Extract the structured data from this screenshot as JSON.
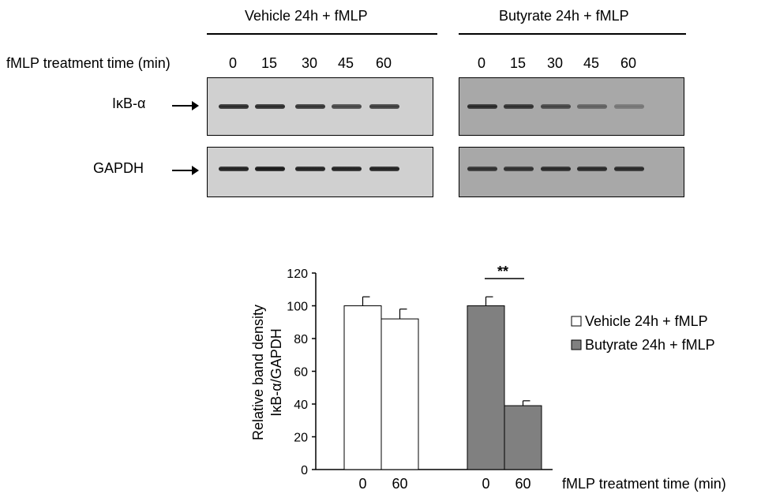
{
  "blot": {
    "groups": [
      {
        "label": "Vehicle 24h + fMLP"
      },
      {
        "label": "Butyrate 24h + fMLP"
      }
    ],
    "time_axis_label": "fMLP treatment time (min)",
    "time_points": [
      "0",
      "15",
      "30",
      "45",
      "60"
    ],
    "rows": [
      {
        "label": "IκB-α",
        "vehicle_intensity": [
          0.9,
          0.9,
          0.85,
          0.75,
          0.8
        ],
        "butyrate_intensity": [
          0.9,
          0.85,
          0.7,
          0.5,
          0.35
        ]
      },
      {
        "label": "GAPDH",
        "vehicle_intensity": [
          0.95,
          1.0,
          0.95,
          0.95,
          0.95
        ],
        "butyrate_intensity": [
          0.85,
          0.85,
          0.9,
          0.9,
          0.9
        ]
      }
    ],
    "colors": {
      "vehicle_bg": "#d0d0d0",
      "butyrate_bg": "#a8a8a8"
    }
  },
  "chart_data": {
    "type": "bar",
    "ylabel_line1": "Relative band density",
    "ylabel_line2": "IκB-α/GAPDH",
    "xlabel": "fMLP treatment time (min)",
    "ylim": [
      0,
      120
    ],
    "yticks": [
      0,
      20,
      40,
      60,
      80,
      100,
      120
    ],
    "groups": [
      {
        "name": "Vehicle 24h + fMLP",
        "color": "#ffffff",
        "categories": [
          "0",
          "60"
        ],
        "values": [
          100,
          92
        ],
        "errors": [
          5.5,
          6
        ]
      },
      {
        "name": "Butyrate 24h + fMLP",
        "color": "#808080",
        "categories": [
          "0",
          "60"
        ],
        "values": [
          100,
          39
        ],
        "errors": [
          5.5,
          3
        ]
      }
    ],
    "annotation": "**",
    "legend": {
      "position": "right"
    }
  }
}
